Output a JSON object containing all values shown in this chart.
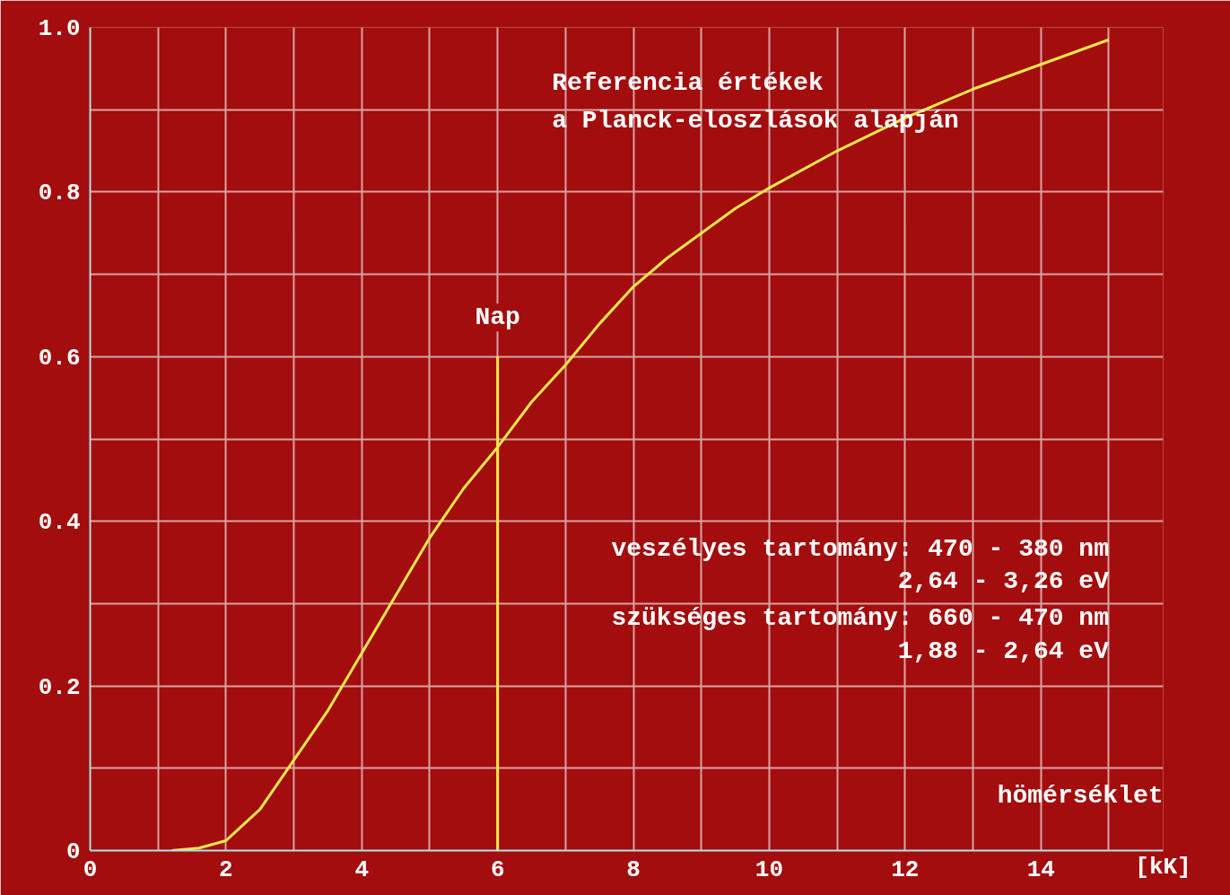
{
  "chart_data": {
    "type": "line",
    "xlabel": "[kK]",
    "xlim": [
      0,
      15.8
    ],
    "ylim": [
      0,
      1.0
    ],
    "xticks": [
      0,
      {
        "value": 1,
        "label": null
      },
      2,
      {
        "value": 3,
        "label": null
      },
      4,
      {
        "value": 5,
        "label": null
      },
      6,
      {
        "value": 7,
        "label": null
      },
      8,
      {
        "value": 9,
        "label": null
      },
      10,
      {
        "value": 11,
        "label": null
      },
      12,
      {
        "value": 13,
        "label": null
      },
      14,
      {
        "value": 15,
        "label": null
      }
    ],
    "yticks": [
      0,
      {
        "value": 0.1,
        "label": null
      },
      0.2,
      {
        "value": 0.3,
        "label": null
      },
      0.4,
      {
        "value": 0.5,
        "label": null
      },
      0.6,
      {
        "value": 0.7,
        "label": null
      },
      0.8,
      {
        "value": 0.9,
        "label": null
      },
      {
        "value": 1.0,
        "label": "1.0"
      }
    ],
    "grid": true,
    "series": [
      {
        "color": "#f2e84a",
        "x": [
          1.2,
          1.6,
          2,
          2.5,
          3,
          3.5,
          4,
          4.5,
          5,
          5.5,
          6,
          6.5,
          7,
          7.5,
          8,
          8.5,
          9,
          9.5,
          10,
          11,
          12,
          13,
          14,
          15
        ],
        "values": [
          0,
          0.003,
          0.012,
          0.05,
          0.11,
          0.17,
          0.24,
          0.31,
          0.38,
          0.44,
          0.49,
          0.545,
          0.59,
          0.64,
          0.685,
          0.72,
          0.75,
          0.78,
          0.805,
          0.85,
          0.89,
          0.925,
          0.955,
          0.985
        ]
      },
      {
        "name": "Nap",
        "color": "#f2e84a",
        "x": [
          6,
          6
        ],
        "values": [
          0,
          0.6
        ]
      }
    ],
    "annotations": [
      "Referencia értékek",
      "a Planck-eloszlások alapján",
      "veszélyes tartomány: 470 - 380 nm",
      "2,64 - 3,26 eV",
      "szükséges tartomány: 660 - 470 nm",
      "1,88 - 2,64 eV",
      "hömérséklet"
    ]
  }
}
